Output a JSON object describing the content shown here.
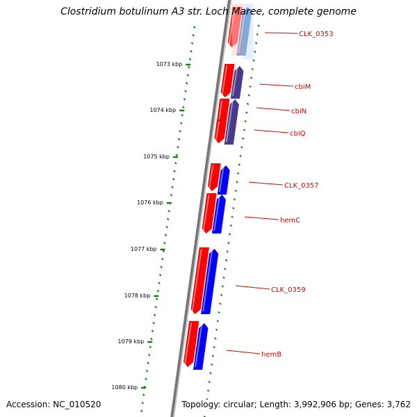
{
  "title": "Clostridium botulinum A3 str. Loch Maree, complete genome",
  "footer": {
    "accession": "Accession: NC_010520",
    "summary": "Topology: circular; Length: 3,992,906 bp; Genes: 3,762"
  },
  "colors": {
    "backbone": "#777777",
    "tick": "#1a7a1a",
    "label": "#d00000",
    "forward_gene": "#ff0000",
    "reverse_gene": "#0000ff"
  },
  "kbp_ticks": [
    "1073 kbp",
    "1074 kbp",
    "1075 kbp",
    "1076 kbp",
    "1077 kbp",
    "1078 kbp",
    "1079 kbp",
    "1080 kbp"
  ],
  "genes": [
    {
      "label": "CLK_0353",
      "reverse_color": "#4a84c0",
      "highlight": true
    },
    {
      "label": "cbiM",
      "reverse_color": "#4a3a8c",
      "highlight": false
    },
    {
      "label": "cbiN",
      "reverse_color": "#4a3a8c",
      "highlight": false
    },
    {
      "label": "cbiQ",
      "reverse_color": "#4a3a8c",
      "highlight": false
    },
    {
      "label": "CLK_0357",
      "reverse_color": "#0000ff",
      "highlight": false
    },
    {
      "label": "hemC",
      "reverse_color": "#0000ff",
      "highlight": false
    },
    {
      "label": "CLK_0359",
      "reverse_color": "#0000ff",
      "highlight": false
    },
    {
      "label": "hemB",
      "reverse_color": "#0000ff",
      "highlight": false
    }
  ]
}
